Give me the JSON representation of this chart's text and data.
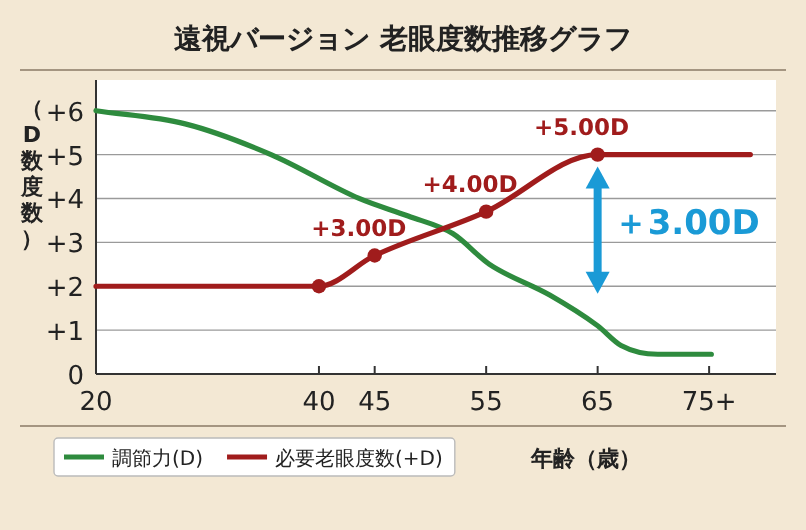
{
  "chart_data": {
    "type": "line",
    "title": "遠視バージョン 老眼度数推移グラフ",
    "xlabel": "年齢（歳）",
    "ylabel": "（D数度数）",
    "xlim": [
      20,
      81
    ],
    "ylim": [
      0,
      6.7
    ],
    "xticks": [
      20,
      40,
      45,
      55,
      65,
      {
        "value": 75,
        "label": "75+"
      }
    ],
    "yticks": [
      0,
      {
        "value": 1,
        "label": "+1"
      },
      {
        "value": 2,
        "label": "+2"
      },
      {
        "value": 3,
        "label": "+3"
      },
      {
        "value": 4,
        "label": "+4"
      },
      {
        "value": 5,
        "label": "+5"
      },
      {
        "value": 6,
        "label": "+6"
      }
    ],
    "grid": "y",
    "legend": "bottom",
    "line_style": "solid",
    "series": [
      {
        "name": "調節力(D)",
        "color": "#2e8b3e",
        "x": [
          20,
          28,
          35.7,
          43.6,
          48,
          52,
          55.3,
          60.7,
          65,
          67.1,
          70.4,
          75.2
        ],
        "values": [
          6.0,
          5.7,
          5.0,
          4.0,
          3.6,
          3.2,
          2.5,
          1.8,
          1.1,
          0.65,
          0.45,
          0.45
        ]
      },
      {
        "name": "必要老眼度数(+D)",
        "color": "#a01c1c",
        "x": [
          20,
          40,
          45,
          55,
          65,
          78.7
        ],
        "values": [
          2,
          2,
          2.7,
          3.7,
          5,
          5
        ]
      },
      {
        "type": "scatter",
        "marker": "circle",
        "color": "#a01c1c",
        "x": [
          40,
          45,
          55,
          65
        ],
        "values": [
          2,
          2.7,
          3.7,
          5
        ]
      }
    ],
    "annotations": [
      {
        "text": "+3.00D",
        "x": 45,
        "y": 2.7
      },
      {
        "text": "+4.00D",
        "x": 55,
        "y": 3.7
      },
      {
        "text": "+5.00D",
        "x": 65,
        "y": 5
      },
      "＋3.00D"
    ]
  }
}
